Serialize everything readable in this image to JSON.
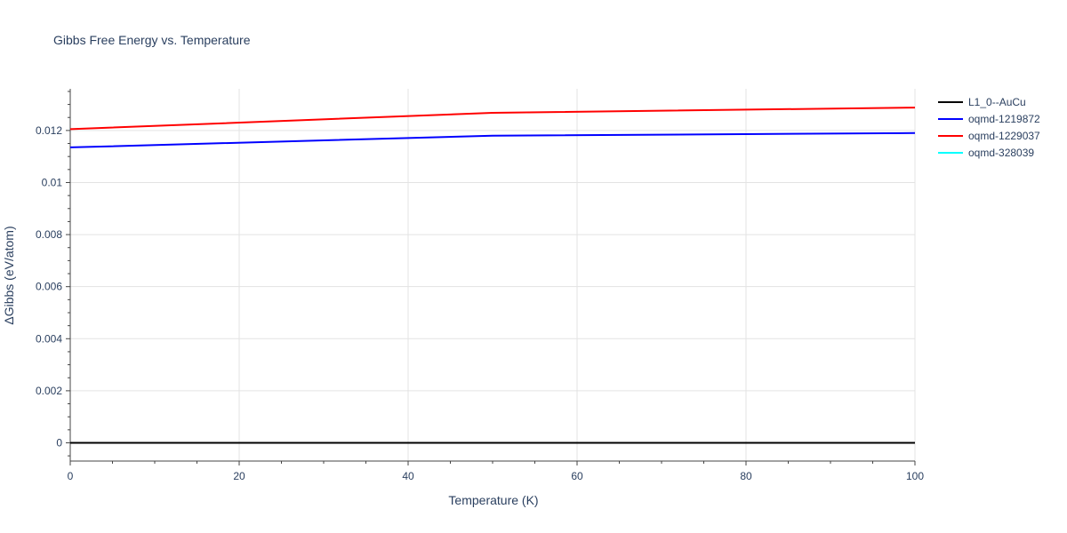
{
  "chart_data": {
    "type": "line",
    "title": "Gibbs Free Energy vs. Temperature",
    "xlabel": "Temperature (K)",
    "ylabel": "ΔGibbs (eV/atom)",
    "xlim": [
      0,
      100
    ],
    "ylim": [
      -0.0007,
      0.0136
    ],
    "x_ticks": [
      0,
      20,
      40,
      60,
      80,
      100
    ],
    "x_tick_labels": [
      "0",
      "20",
      "40",
      "60",
      "80",
      "100"
    ],
    "y_ticks": [
      0,
      0.002,
      0.004,
      0.006,
      0.008,
      0.01,
      0.012
    ],
    "y_tick_labels": [
      "0",
      "0.002",
      "0.004",
      "0.006",
      "0.008",
      "0.01",
      "0.012"
    ],
    "grid": true,
    "legend_position": "top-right",
    "series": [
      {
        "name": "L1_0--AuCu",
        "color": "#000000",
        "x": [
          0,
          50,
          100
        ],
        "values": [
          0,
          0,
          0
        ]
      },
      {
        "name": "oqmd-1219872",
        "color": "#0000ff",
        "x": [
          0,
          50,
          100
        ],
        "values": [
          0.01135,
          0.0118,
          0.0119
        ]
      },
      {
        "name": "oqmd-1229037",
        "color": "#ff0000",
        "x": [
          0,
          50,
          100
        ],
        "values": [
          0.01205,
          0.01268,
          0.01288
        ]
      },
      {
        "name": "oqmd-328039",
        "color": "#00ffff",
        "x": [],
        "values": []
      }
    ]
  }
}
